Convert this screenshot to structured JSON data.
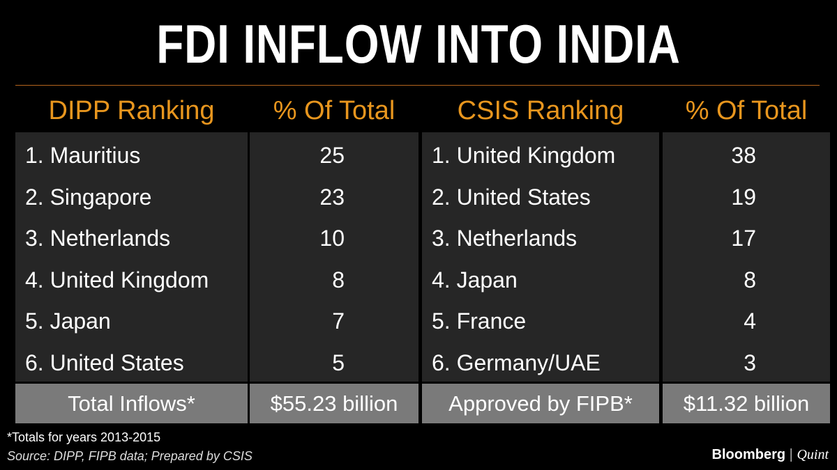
{
  "title": "FDI INFLOW INTO INDIA",
  "table": {
    "headers": [
      "DIPP Ranking",
      "% Of Total",
      "CSIS Ranking",
      "% Of Total"
    ],
    "rows": [
      [
        "1. Mauritius",
        25,
        "1. United Kingdom",
        38
      ],
      [
        "2. Singapore",
        23,
        "2. United States",
        19
      ],
      [
        "3. Netherlands",
        10,
        "3. Netherlands",
        17
      ],
      [
        "4. United Kingdom",
        8,
        "4. Japan",
        8
      ],
      [
        "5. Japan",
        7,
        "5. France",
        4
      ],
      [
        "6. United States",
        5,
        "6. Germany/UAE",
        3
      ]
    ],
    "totals": [
      "Total Inflows*",
      "$55.23 billion",
      "Approved by FIPB*",
      "$11.32 billion"
    ]
  },
  "footnote": "*Totals for years 2013-2015",
  "source": "Source: DIPP, FIPB data; Prepared by CSIS",
  "brand": {
    "left": "Bloomberg",
    "right": "Quint"
  }
}
